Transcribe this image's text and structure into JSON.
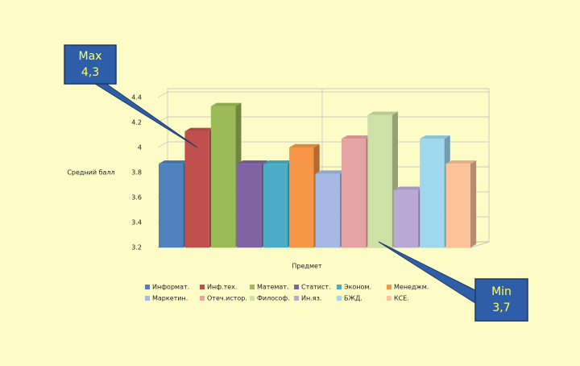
{
  "chart_data": {
    "type": "bar",
    "y_label": "Средний балл",
    "x_label": "Предмет",
    "categories": [
      "Информат.",
      "Инф.тех.",
      "Математ.",
      "Статист.",
      "Эконом.",
      "Менеджм.",
      "Маркетин.",
      "Отеч.истор.",
      "Философ.",
      "Ин.яз.",
      "БЖД.",
      "КСЕ."
    ],
    "values": [
      3.87,
      4.13,
      4.33,
      3.87,
      3.87,
      4.0,
      3.79,
      4.07,
      4.26,
      3.66,
      4.07,
      3.87
    ],
    "colors": [
      "#4f81bd",
      "#c0504d",
      "#9bbb59",
      "#8064a2",
      "#4bacc6",
      "#f79646",
      "#a5b9e4",
      "#e6a3a3",
      "#cde0a5",
      "#b9a9d4",
      "#9fd8ee",
      "#fcc39b"
    ],
    "ylim": [
      3.2,
      4.4
    ],
    "yticks": [
      3.2,
      3.4,
      3.6,
      3.8,
      4,
      4.2,
      4.4
    ],
    "grid": true,
    "annotations": [
      [
        "Max",
        "4,3"
      ],
      [
        "Min",
        "3,7"
      ]
    ]
  }
}
